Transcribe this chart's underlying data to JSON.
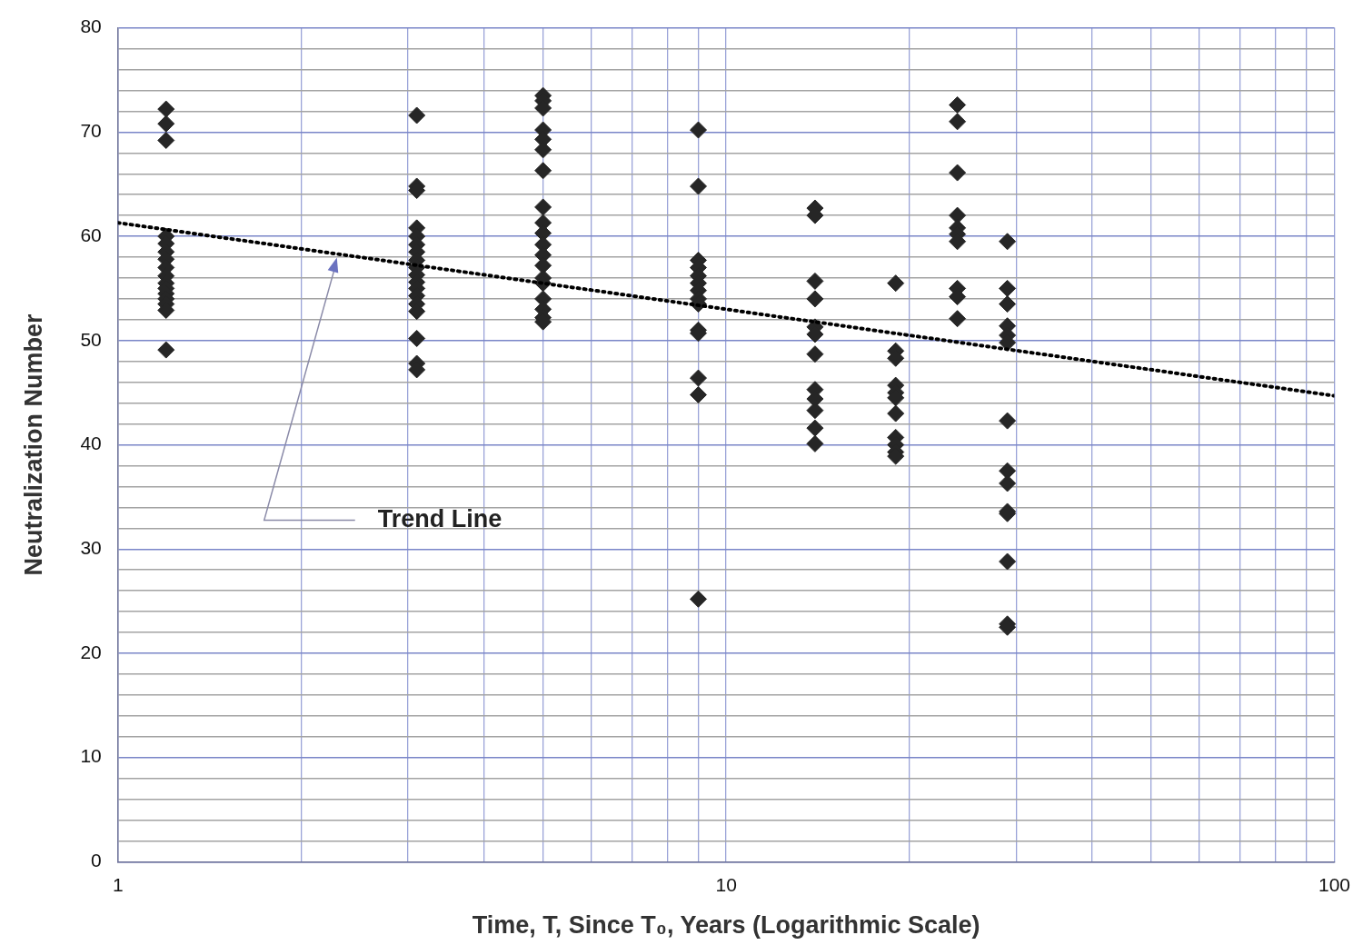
{
  "chart_data": {
    "type": "scatter",
    "xlabel": "Time, T, Since T₀, Years (Logarithmic Scale)",
    "ylabel": "Neutralization Number",
    "log": "x",
    "grid": true,
    "legend": false,
    "marker": "diamond",
    "xlim": [
      1,
      100
    ],
    "ylim": [
      0,
      80
    ],
    "xticks": [
      1,
      {
        "value": 2,
        "label": null
      },
      {
        "value": 3,
        "label": null
      },
      {
        "value": 4,
        "label": null
      },
      {
        "value": 5,
        "label": null
      },
      {
        "value": 6,
        "label": null
      },
      {
        "value": 7,
        "label": null
      },
      {
        "value": 8,
        "label": null
      },
      {
        "value": 9,
        "label": null
      },
      10,
      {
        "value": 20,
        "label": null
      },
      {
        "value": 30,
        "label": null
      },
      {
        "value": 40,
        "label": null
      },
      {
        "value": 50,
        "label": null
      },
      {
        "value": 60,
        "label": null
      },
      {
        "value": 70,
        "label": null
      },
      {
        "value": 80,
        "label": null
      },
      {
        "value": 90,
        "label": null
      },
      100
    ],
    "yticks": [
      0,
      {
        "value": 2,
        "label": null
      },
      {
        "value": 4,
        "label": null
      },
      {
        "value": 6,
        "label": null
      },
      {
        "value": 8,
        "label": null
      },
      10,
      {
        "value": 12,
        "label": null
      },
      {
        "value": 14,
        "label": null
      },
      {
        "value": 16,
        "label": null
      },
      {
        "value": 18,
        "label": null
      },
      20,
      {
        "value": 22,
        "label": null
      },
      {
        "value": 24,
        "label": null
      },
      {
        "value": 26,
        "label": null
      },
      {
        "value": 28,
        "label": null
      },
      30,
      {
        "value": 32,
        "label": null
      },
      {
        "value": 34,
        "label": null
      },
      {
        "value": 36,
        "label": null
      },
      {
        "value": 38,
        "label": null
      },
      40,
      {
        "value": 42,
        "label": null
      },
      {
        "value": 44,
        "label": null
      },
      {
        "value": 46,
        "label": null
      },
      {
        "value": 48,
        "label": null
      },
      50,
      {
        "value": 52,
        "label": null
      },
      {
        "value": 54,
        "label": null
      },
      {
        "value": 56,
        "label": null
      },
      {
        "value": 58,
        "label": null
      },
      60,
      {
        "value": 62,
        "label": null
      },
      {
        "value": 64,
        "label": null
      },
      {
        "value": 66,
        "label": null
      },
      {
        "value": 68,
        "label": null
      },
      70,
      {
        "value": 72,
        "label": null
      },
      {
        "value": 74,
        "label": null
      },
      {
        "value": 76,
        "label": null
      },
      {
        "value": 78,
        "label": null
      },
      80
    ],
    "series": [
      {
        "color": "#262626",
        "x": [
          1.2,
          1.2,
          1.2,
          1.2,
          1.2,
          1.2,
          1.2,
          1.2,
          1.2,
          1.2,
          1.2,
          1.2,
          1.2,
          1.2,
          1.2,
          1.2,
          3.1,
          3.1,
          3.1,
          3.1,
          3.1,
          3.1,
          3.1,
          3.1,
          3.1,
          3.1,
          3.1,
          3.1,
          3.1,
          3.1,
          3.1,
          3.1,
          3.1,
          3.1,
          5,
          5,
          5,
          5,
          5,
          5,
          5,
          5,
          5,
          5,
          5,
          5,
          5,
          5,
          5,
          5,
          5,
          5,
          5,
          9,
          9,
          9,
          9,
          9,
          9,
          9,
          9,
          9,
          9,
          9,
          9,
          9,
          9,
          14,
          14,
          14,
          14,
          14,
          14,
          14,
          14,
          14,
          14,
          14,
          14,
          19,
          19,
          19,
          19,
          19,
          19,
          19,
          19,
          19,
          19,
          19,
          24,
          24,
          24,
          24,
          24,
          24,
          24,
          24,
          24,
          24,
          29,
          29,
          29,
          29,
          29,
          29,
          29,
          29,
          29,
          29,
          29,
          29,
          29,
          29
        ],
        "values": [
          72.2,
          70.8,
          69.2,
          60,
          59.3,
          58.5,
          57.8,
          57,
          56.2,
          55.5,
          55,
          54.5,
          54,
          53.5,
          52.9,
          49.1,
          71.6,
          64.8,
          64.4,
          60.8,
          60,
          59.2,
          58.5,
          57.7,
          57,
          56.3,
          55.6,
          55,
          54.3,
          53.5,
          52.8,
          50.2,
          47.8,
          47.2,
          73.5,
          73,
          72.3,
          70.2,
          69.3,
          68.3,
          66.3,
          62.8,
          61.3,
          60.3,
          59.2,
          58.2,
          57.2,
          56,
          55.5,
          54,
          53,
          52.2,
          51.8,
          70.2,
          64.8,
          57.7,
          57,
          56.2,
          55.5,
          54.8,
          54,
          53.5,
          51,
          50.7,
          46.4,
          44.8,
          25.2,
          62.7,
          62,
          55.7,
          54,
          51.3,
          50.6,
          48.7,
          45.3,
          44.4,
          43.3,
          41.6,
          40.1,
          55.5,
          49,
          48.3,
          45.7,
          45,
          44.5,
          43,
          40.7,
          40,
          39.3,
          38.9,
          72.6,
          71,
          66.1,
          62,
          60.8,
          60.2,
          59.5,
          55,
          54.2,
          52.1,
          59.5,
          55,
          53.5,
          51.4,
          50.5,
          49.8,
          42.3,
          37.5,
          36.3,
          33.6,
          33.4,
          28.8,
          22.8,
          22.5
        ]
      },
      {
        "type": "line",
        "color": "#000000",
        "line_style": "dotted",
        "marker": "none",
        "x": [
          1,
          100
        ],
        "values": [
          61.3,
          44.7
        ]
      }
    ],
    "annotations": [
      "Trend Line"
    ]
  }
}
